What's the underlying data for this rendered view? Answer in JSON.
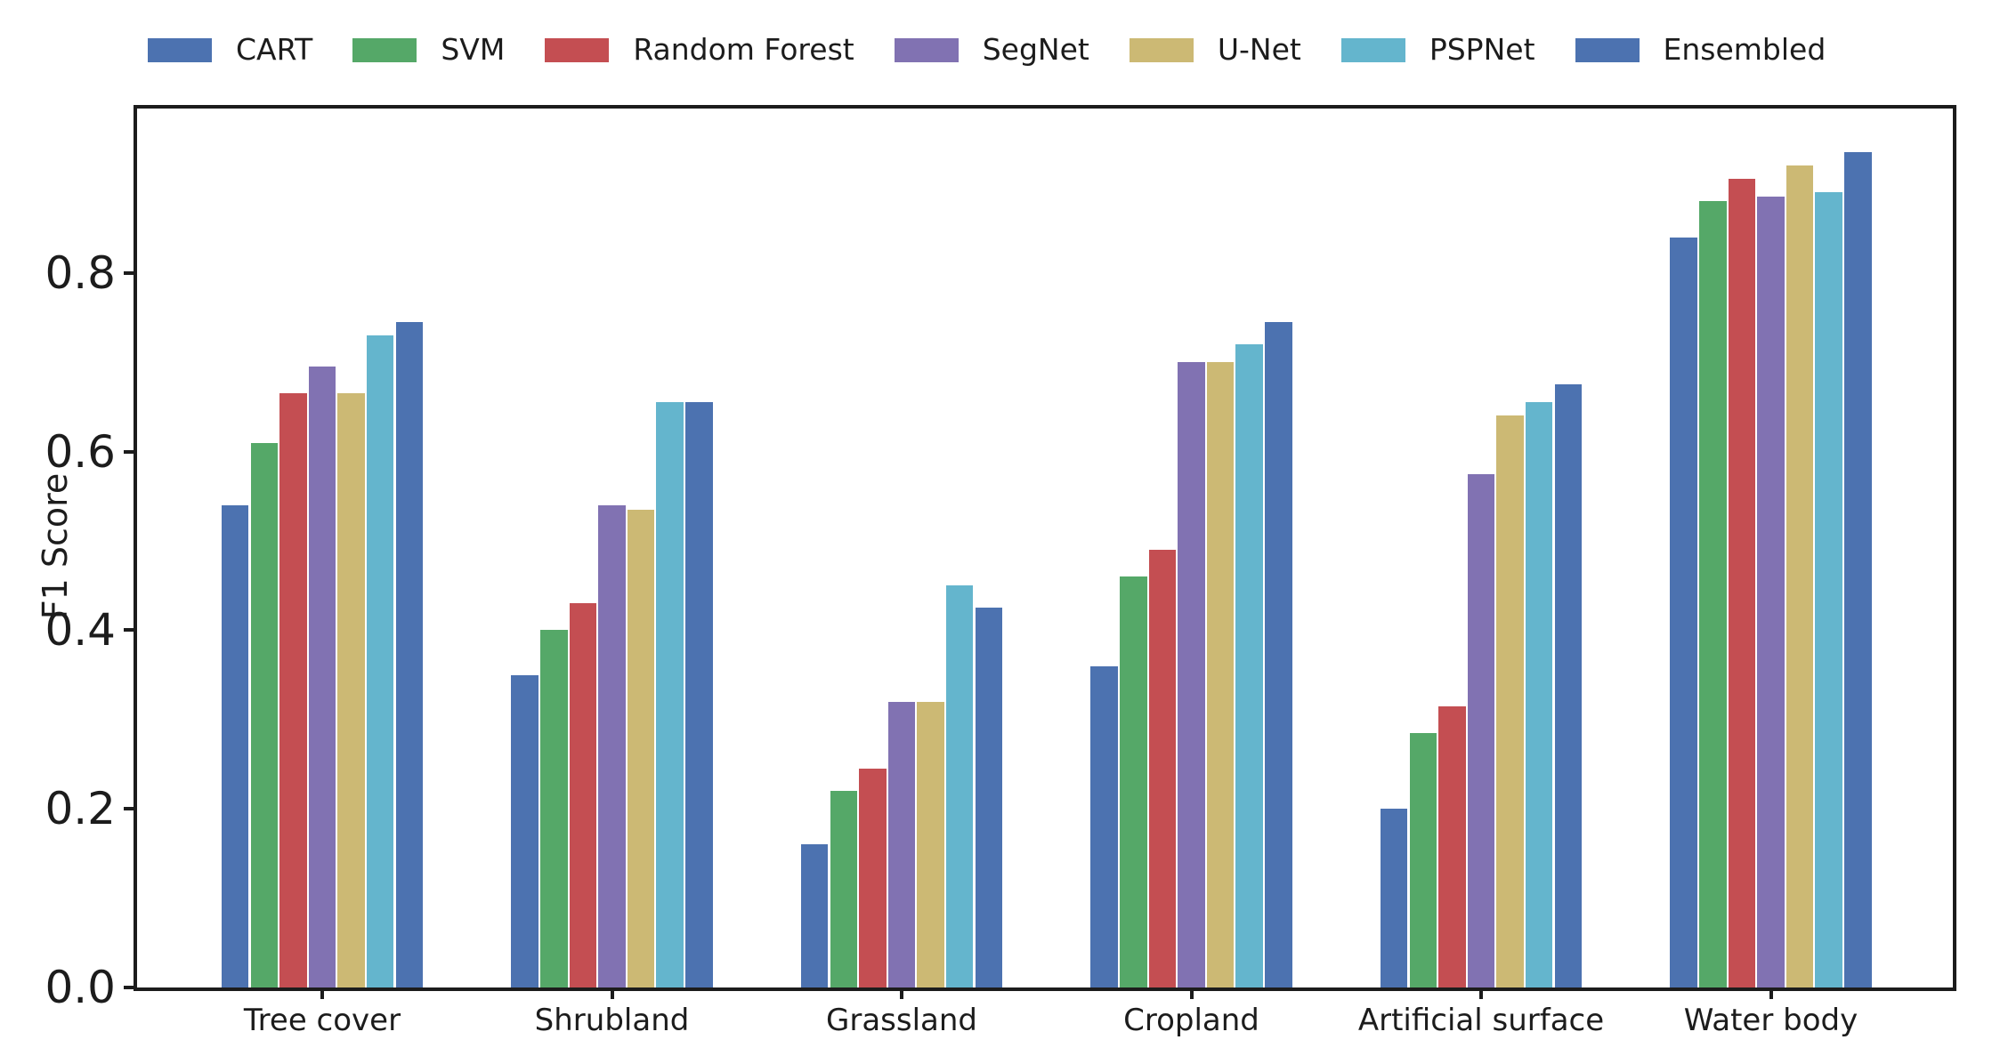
{
  "chart_data": {
    "type": "bar",
    "title": "",
    "xlabel": "",
    "ylabel": "F1 Score",
    "categories": [
      "Tree cover",
      "Shrubland",
      "Grassland",
      "Cropland",
      "Artificial surface",
      "Water body"
    ],
    "series": [
      {
        "name": "CART",
        "color": "#4C72B0",
        "values": [
          0.54,
          0.35,
          0.16,
          0.36,
          0.2,
          0.84
        ]
      },
      {
        "name": "SVM",
        "color": "#55A868",
        "values": [
          0.61,
          0.4,
          0.22,
          0.46,
          0.285,
          0.88
        ]
      },
      {
        "name": "Random Forest",
        "color": "#C44E52",
        "values": [
          0.665,
          0.43,
          0.245,
          0.49,
          0.315,
          0.905
        ]
      },
      {
        "name": "SegNet",
        "color": "#8172B2",
        "values": [
          0.695,
          0.54,
          0.32,
          0.7,
          0.575,
          0.885
        ]
      },
      {
        "name": "U-Net",
        "color": "#CCB974",
        "values": [
          0.665,
          0.535,
          0.32,
          0.7,
          0.64,
          0.92
        ]
      },
      {
        "name": "PSPNet",
        "color": "#64B5CD",
        "values": [
          0.73,
          0.655,
          0.45,
          0.72,
          0.655,
          0.89
        ]
      },
      {
        "name": "Ensembled",
        "color": "#4C72B0",
        "values": [
          0.745,
          0.655,
          0.425,
          0.745,
          0.675,
          0.935
        ]
      }
    ],
    "yticks": [
      0.0,
      0.2,
      0.4,
      0.6,
      0.8
    ],
    "ytick_labels": [
      "0.0",
      "0.2",
      "0.4",
      "0.6",
      "0.8"
    ],
    "ylim": [
      0,
      0.984
    ],
    "grid": false,
    "legend_position": "top"
  },
  "style": {
    "background": "#ffffff",
    "axis_color": "#1c1c1c",
    "text_color": "#262626"
  }
}
